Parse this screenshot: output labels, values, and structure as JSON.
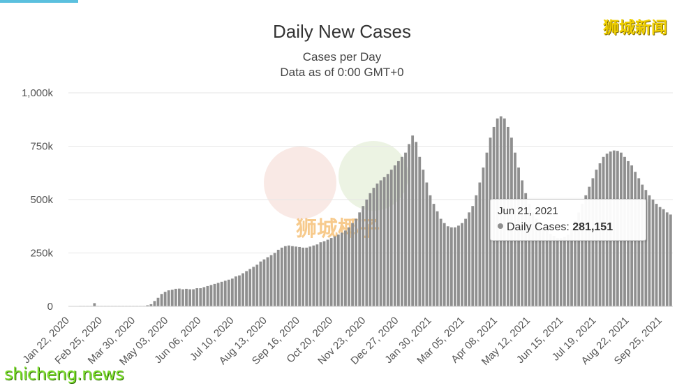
{
  "colors": {
    "bar": "#8f8f8f",
    "grid": "#e6e6e6",
    "accent_bar": "#5bc0de",
    "watermark": "#f0d000",
    "watermark_bottom": "#7fe030"
  },
  "watermarks": {
    "top_right": "狮城新闻",
    "bottom_left": "shicheng.news",
    "center_badge": "狮城椰子"
  },
  "tooltip": {
    "date": "Jun 21, 2021",
    "series_label": "Daily Cases:",
    "value": "281,151",
    "marker_color": "#8f8f8f"
  },
  "chart_data": {
    "type": "bar",
    "title": "Daily New Cases",
    "subtitle": "Cases per Day",
    "subtitle2": "Data as of 0:00 GMT+0",
    "ylim": [
      0,
      1000000
    ],
    "yticks": [
      0,
      250000,
      500000,
      750000,
      1000000
    ],
    "ytick_labels": [
      "0",
      "250k",
      "500k",
      "750k",
      "1,000k"
    ],
    "grid": true,
    "xtick_labels": [
      "Jan 22, 2020",
      "Feb 25, 2020",
      "Mar 30, 2020",
      "May 03, 2020",
      "Jun 06, 2020",
      "Jul 10, 2020",
      "Aug 13, 2020",
      "Sep 16, 2020",
      "Oct 20, 2020",
      "Nov 23, 2020",
      "Dec 27, 2020",
      "Jan 30, 2021",
      "Mar 05, 2021",
      "Apr 08, 2021",
      "May 12, 2021",
      "Jun 15, 2021",
      "Jul 19, 2021",
      "Aug 22, 2021",
      "Sep 25, 2021"
    ],
    "series": [
      {
        "values": [
          0,
          0,
          0,
          2000,
          2000,
          2000,
          2000,
          15000,
          2000,
          2000,
          2000,
          2000,
          2000,
          2000,
          2000,
          2000,
          2000,
          2000,
          2000,
          2000,
          2000,
          2000,
          5000,
          10000,
          25000,
          40000,
          58000,
          68000,
          75000,
          78000,
          82000,
          83000,
          80000,
          82000,
          80000,
          80000,
          85000,
          85000,
          90000,
          95000,
          100000,
          105000,
          110000,
          115000,
          120000,
          125000,
          130000,
          140000,
          145000,
          155000,
          165000,
          175000,
          185000,
          195000,
          210000,
          220000,
          230000,
          240000,
          250000,
          265000,
          275000,
          282000,
          285000,
          282000,
          280000,
          278000,
          275000,
          275000,
          280000,
          285000,
          290000,
          300000,
          305000,
          312000,
          320000,
          328000,
          336000,
          345000,
          355000,
          370000,
          390000,
          410000,
          440000,
          470000,
          500000,
          530000,
          555000,
          575000,
          590000,
          605000,
          620000,
          640000,
          660000,
          680000,
          700000,
          720000,
          760000,
          800000,
          770000,
          700000,
          640000,
          580000,
          520000,
          480000,
          445000,
          410000,
          390000,
          375000,
          370000,
          370000,
          378000,
          390000,
          410000,
          440000,
          470000,
          520000,
          580000,
          650000,
          720000,
          790000,
          840000,
          880000,
          890000,
          880000,
          840000,
          790000,
          720000,
          650000,
          590000,
          530000,
          480000,
          440000,
          410000,
          390000,
          370000,
          355000,
          340000,
          330000,
          320000,
          320000,
          325000,
          335000,
          360000,
          400000,
          440000,
          480000,
          520000,
          560000,
          600000,
          640000,
          670000,
          700000,
          715000,
          725000,
          730000,
          728000,
          720000,
          700000,
          680000,
          660000,
          630000,
          600000,
          570000,
          545000,
          520000,
          500000,
          480000,
          465000,
          455000,
          440000,
          430000
        ]
      }
    ]
  }
}
